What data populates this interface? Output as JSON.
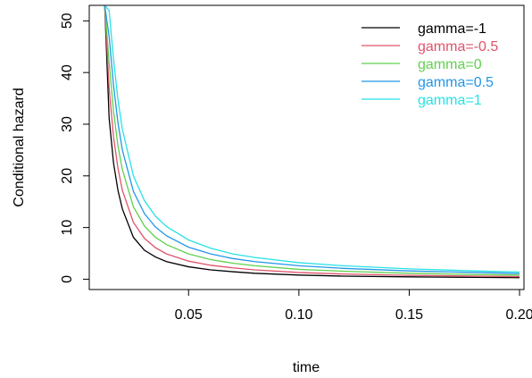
{
  "chart_data": {
    "type": "line",
    "xlabel": "time",
    "ylabel": "Conditional hazard",
    "xlim": [
      0.005,
      0.202
    ],
    "ylim": [
      -2,
      53
    ],
    "xticks": [
      0.05,
      0.1,
      0.15,
      0.2
    ],
    "xtick_labels": [
      "0.05",
      "0.10",
      "0.15",
      "0.20"
    ],
    "yticks": [
      0,
      10,
      20,
      30,
      40,
      50
    ],
    "ytick_labels": [
      "0",
      "10",
      "20",
      "30",
      "40",
      "50"
    ],
    "grid": false,
    "legend_position": "top-right",
    "x": [
      0.012,
      0.014,
      0.016,
      0.018,
      0.02,
      0.025,
      0.03,
      0.035,
      0.04,
      0.05,
      0.06,
      0.07,
      0.08,
      0.1,
      0.12,
      0.15,
      0.18,
      0.2
    ],
    "series": [
      {
        "name": "gamma=-1",
        "color": "#000000",
        "values": [
          53,
          31.2,
          22.5,
          17.2,
          13.6,
          8.1,
          5.6,
          4.3,
          3.4,
          2.4,
          1.8,
          1.45,
          1.15,
          0.8,
          0.6,
          0.45,
          0.35,
          0.3
        ]
      },
      {
        "name": "gamma=-0.5",
        "color": "#DF536B",
        "values": [
          53,
          37.0,
          27.5,
          21.5,
          17.2,
          11.0,
          7.9,
          6.1,
          4.9,
          3.5,
          2.7,
          2.2,
          1.8,
          1.3,
          1.0,
          0.75,
          0.6,
          0.5
        ]
      },
      {
        "name": "gamma=0",
        "color": "#61D04F",
        "values": [
          53,
          42.0,
          32.5,
          25.8,
          21.2,
          14.0,
          10.3,
          8.1,
          6.7,
          4.9,
          3.8,
          3.1,
          2.6,
          1.9,
          1.55,
          1.15,
          0.9,
          0.8
        ]
      },
      {
        "name": "gamma=0.5",
        "color": "#2297E6",
        "values": [
          53,
          47.0,
          37.5,
          30.3,
          25.0,
          17.0,
          12.7,
          10.1,
          8.4,
          6.2,
          4.9,
          4.0,
          3.4,
          2.6,
          2.1,
          1.6,
          1.3,
          1.1
        ]
      },
      {
        "name": "gamma=1",
        "color": "#28E2E5",
        "values": [
          53,
          52.0,
          42.5,
          34.8,
          29.0,
          20.0,
          15.2,
          12.2,
          10.2,
          7.6,
          6.0,
          4.9,
          4.2,
          3.2,
          2.6,
          2.0,
          1.6,
          1.4
        ]
      }
    ]
  }
}
